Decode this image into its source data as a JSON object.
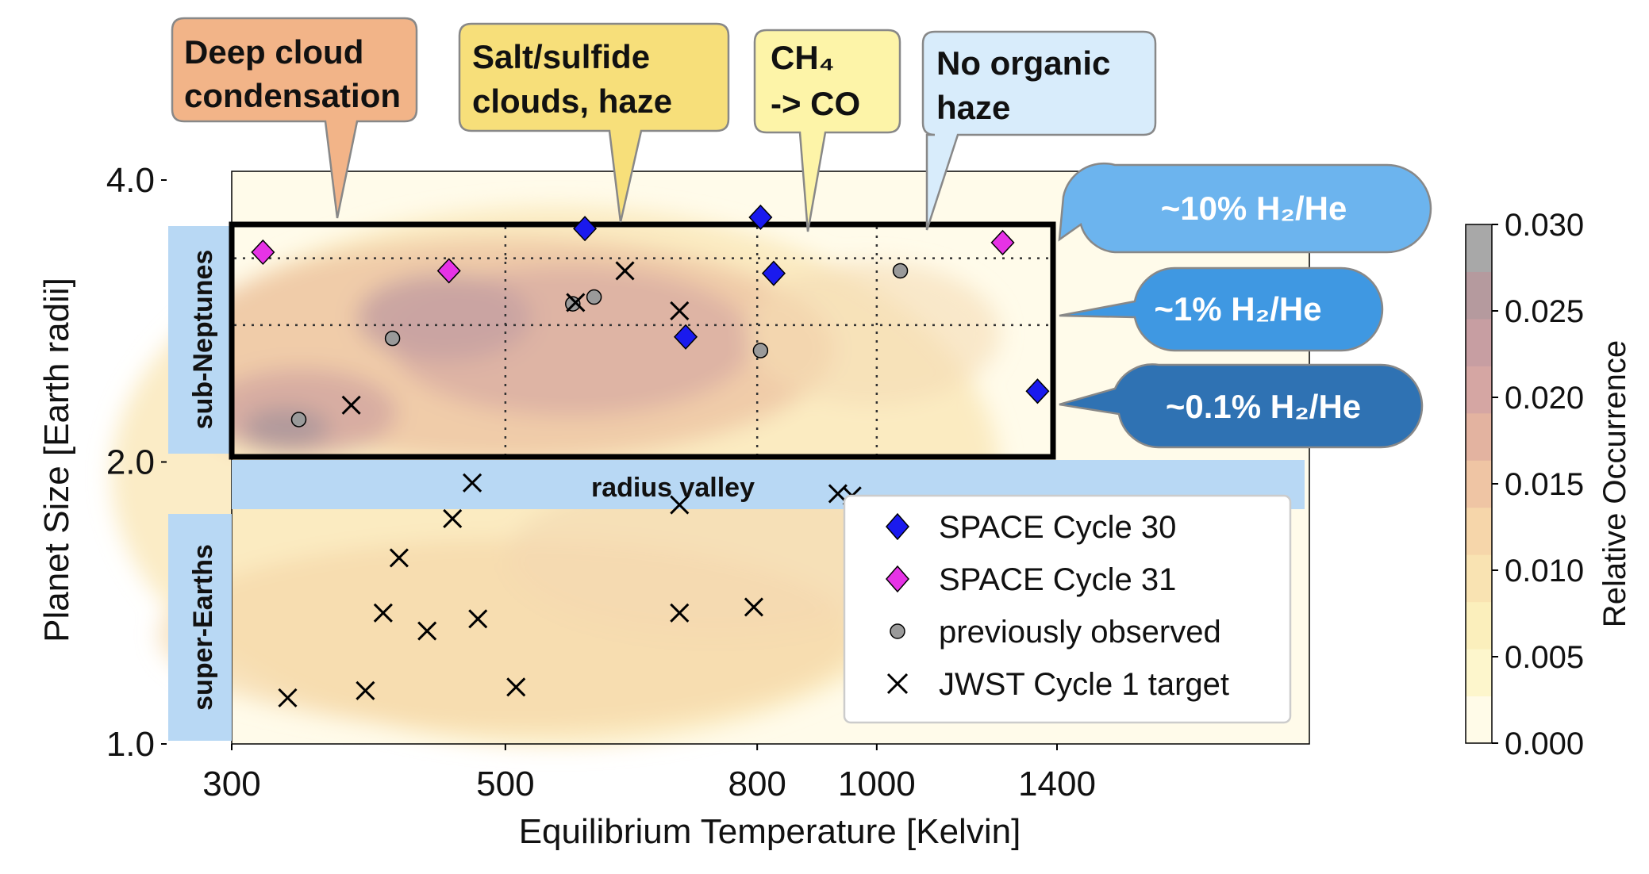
{
  "chart_data": {
    "type": "scatter",
    "xlabel": "Equilibrium Temperature [Kelvin]",
    "ylabel": "Planet Size [Earth radii]",
    "x_scale": "log",
    "y_scale": "log",
    "xlim": [
      300,
      3000
    ],
    "ylim": [
      1.0,
      4.0
    ],
    "x_ticks": [
      300,
      500,
      800,
      1000,
      1400
    ],
    "y_ticks": [
      1.0,
      2.0,
      4.0
    ],
    "x_tick_labels": [
      "300",
      "500",
      "800",
      "1000",
      "1400"
    ],
    "y_tick_labels": [
      "1.0",
      "2.0",
      "4.0"
    ],
    "legend_position": "bottom-right",
    "colors": {
      "cycle30": "#1a1aee",
      "cycle31": "#e633e6",
      "previous": "#9a9a9a",
      "box": "#000000",
      "radius_valley": "#b8d8f4",
      "h2_10": "#6cb4ee",
      "h2_1": "#3f98e2",
      "h2_01": "#2f72b3"
    },
    "series": [
      {
        "name": "SPACE Cycle 30",
        "marker": "diamond",
        "points": [
          [
            580,
            3.55
          ],
          [
            805,
            3.65
          ],
          [
            825,
            3.18
          ],
          [
            700,
            2.72
          ],
          [
            1350,
            2.38
          ]
        ]
      },
      {
        "name": "SPACE Cycle 31",
        "marker": "diamond",
        "points": [
          [
            318,
            3.35
          ],
          [
            450,
            3.2
          ],
          [
            1265,
            3.43
          ]
        ]
      },
      {
        "name": "previously observed",
        "marker": "circle",
        "points": [
          [
            340,
            2.22
          ],
          [
            405,
            2.71
          ],
          [
            567,
            2.95
          ],
          [
            590,
            3.0
          ],
          [
            805,
            2.63
          ],
          [
            1045,
            3.2
          ]
        ]
      },
      {
        "name": "JWST Cycle 1 target",
        "marker": "x",
        "points": [
          [
            570,
            2.96
          ],
          [
            625,
            3.2
          ],
          [
            692,
            2.9
          ],
          [
            375,
            2.3
          ],
          [
            470,
            1.9
          ],
          [
            930,
            1.85
          ],
          [
            955,
            1.84
          ],
          [
            692,
            1.8
          ],
          [
            453,
            1.74
          ],
          [
            410,
            1.58
          ],
          [
            398,
            1.38
          ],
          [
            432,
            1.32
          ],
          [
            475,
            1.36
          ],
          [
            692,
            1.38
          ],
          [
            795,
            1.4
          ],
          [
            333,
            1.12
          ],
          [
            385,
            1.14
          ],
          [
            510,
            1.15
          ]
        ]
      }
    ],
    "legend": [
      "SPACE Cycle 30",
      "SPACE Cycle 31",
      "previously observed",
      "JWST Cycle 1 target"
    ],
    "colorbar": {
      "label": "Relative Occurrence",
      "range": [
        0.0,
        0.03
      ],
      "ticks": [
        "0.000",
        "0.005",
        "0.010",
        "0.015",
        "0.020",
        "0.025",
        "0.030"
      ]
    },
    "annotations": {
      "sub_neptunes": "sub-Neptunes",
      "super_earths": "super-Earths",
      "radius_valley": "radius valley",
      "callouts": [
        {
          "lines": [
            "Deep cloud",
            "condensation"
          ],
          "color": "#f2b488"
        },
        {
          "lines": [
            "Salt/sulfide",
            "clouds, haze"
          ],
          "color": "#f7df7a"
        },
        {
          "lines": [
            "CH₄",
            "-> CO"
          ],
          "color": "#fdf4a8"
        },
        {
          "lines": [
            "No organic",
            " haze"
          ],
          "color": "#d8ecfb"
        }
      ],
      "h2_labels": [
        "~10% H₂/He",
        "~1% H₂/He",
        "~0.1% H₂/He"
      ]
    }
  }
}
